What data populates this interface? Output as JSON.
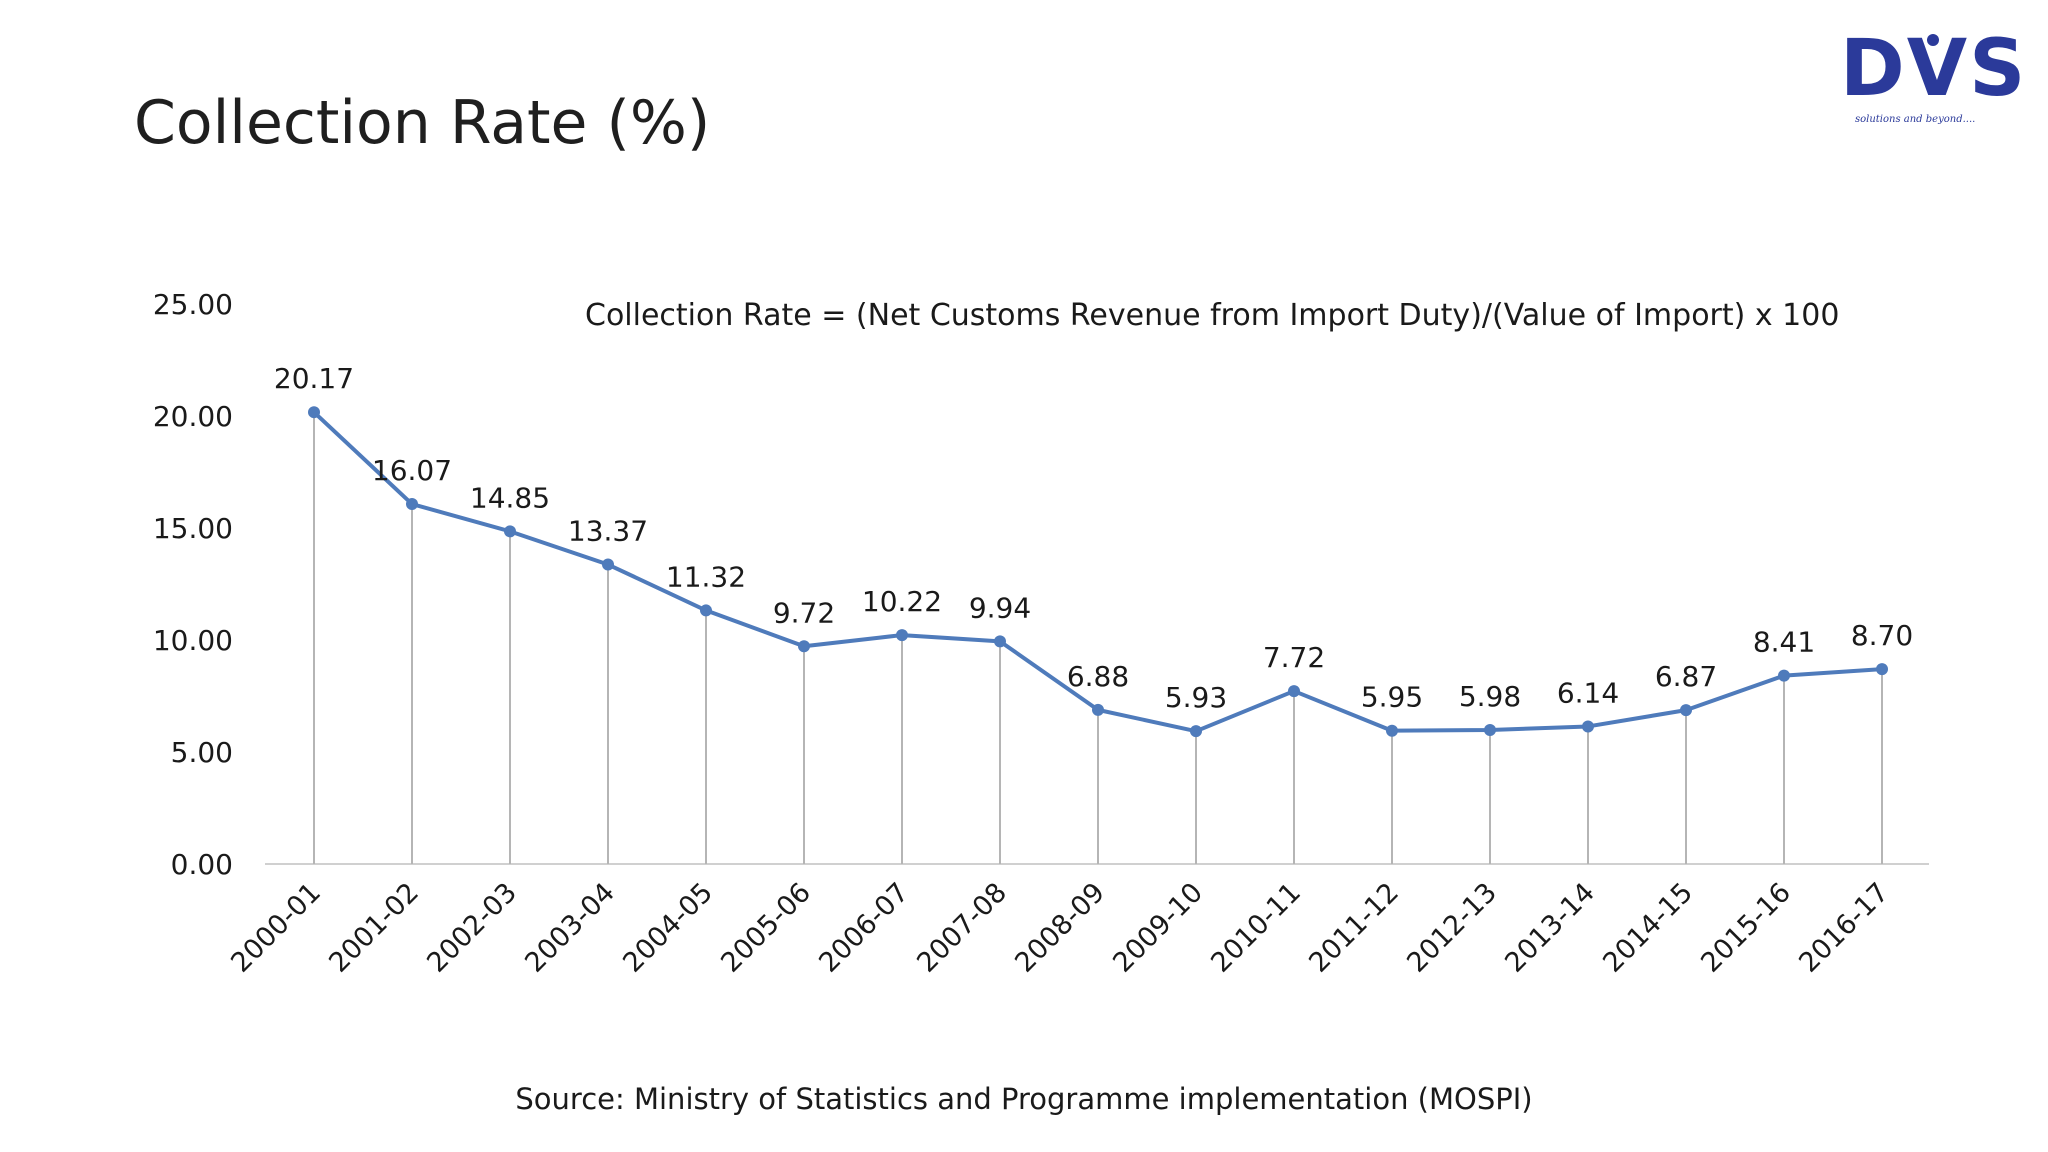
{
  "slide": {
    "title": "Collection Rate (%)",
    "source": "Source: Ministry of Statistics and Programme implementation (MOSPI)"
  },
  "logo": {
    "text": "DVS",
    "tagline": "solutions and beyond....",
    "color": "#2b3a9a"
  },
  "chart_data": {
    "type": "line",
    "title": "",
    "annotation": "Collection Rate = (Net Customs Revenue from Import Duty)/(Value of Import)  x 100",
    "xlabel": "",
    "ylabel": "",
    "ylim": [
      0,
      25
    ],
    "yticks": [
      "0.00",
      "5.00",
      "10.00",
      "15.00",
      "20.00",
      "25.00"
    ],
    "grid": false,
    "drop_lines": true,
    "legend": "none",
    "line_color": "#4f7bbb",
    "categories": [
      "2000-01",
      "2001-02",
      "2002-03",
      "2003-04",
      "2004-05",
      "2005-06",
      "2006-07",
      "2007-08",
      "2008-09",
      "2009-10",
      "2010-11",
      "2011-12",
      "2012-13",
      "2013-14",
      "2014-15",
      "2015-16",
      "2016-17"
    ],
    "values": [
      20.17,
      16.07,
      14.85,
      13.37,
      11.32,
      9.72,
      10.22,
      9.94,
      6.88,
      5.93,
      7.72,
      5.95,
      5.98,
      6.14,
      6.87,
      8.41,
      8.7
    ],
    "data_labels": [
      "20.17",
      "16.07",
      "14.85",
      "13.37",
      "11.32",
      "9.72",
      "10.22",
      "9.94",
      "6.88",
      "5.93",
      "7.72",
      "5.95",
      "5.98",
      "6.14",
      "6.87",
      "8.41",
      "8.70"
    ]
  }
}
